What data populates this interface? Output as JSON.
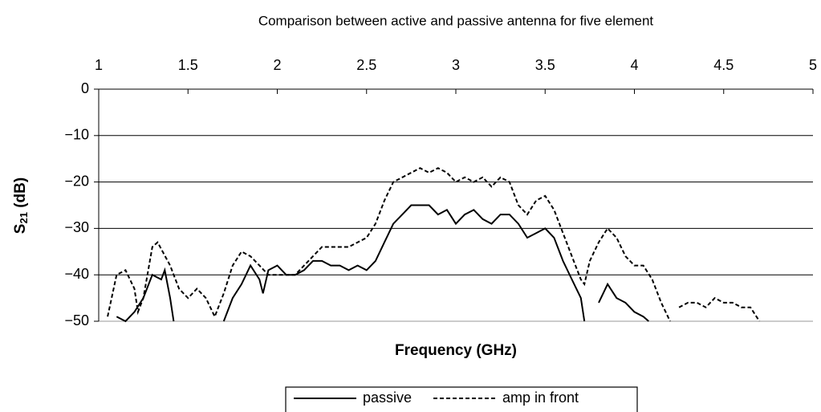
{
  "chart_data": {
    "type": "line",
    "title": "Comparison between active and passive antenna for five element",
    "x_label": "Frequency (GHz)",
    "y_label_parts": [
      "S",
      "21",
      " (dB)"
    ],
    "xlim": [
      1,
      5
    ],
    "xticks": [
      1,
      1.5,
      2,
      2.5,
      3,
      3.5,
      4,
      4.5,
      5
    ],
    "ylim": [
      -50,
      0
    ],
    "yticks": [
      0,
      {
        "value": -10,
        "label": "−10"
      },
      {
        "value": -20,
        "label": "−20"
      },
      {
        "value": -30,
        "label": "−30"
      },
      {
        "value": -40,
        "label": "−40"
      },
      {
        "value": -50,
        "label": "−50"
      }
    ],
    "grid": true,
    "legend": "bottom",
    "series": [
      {
        "name": "passive",
        "color": "#000000",
        "dash": "solid",
        "x": [
          1.1,
          1.15,
          1.2,
          1.25,
          1.3,
          1.35,
          1.37,
          1.4,
          1.42,
          1.5,
          1.7,
          1.75,
          1.8,
          1.85,
          1.9,
          1.92,
          1.95,
          2.0,
          2.05,
          2.1,
          2.15,
          2.2,
          2.25,
          2.3,
          2.35,
          2.4,
          2.45,
          2.5,
          2.55,
          2.6,
          2.65,
          2.7,
          2.75,
          2.8,
          2.85,
          2.9,
          2.95,
          3.0,
          3.05,
          3.1,
          3.15,
          3.2,
          3.25,
          3.3,
          3.35,
          3.4,
          3.45,
          3.5,
          3.55,
          3.6,
          3.65,
          3.7,
          3.72,
          3.76,
          3.8,
          3.85,
          3.9,
          3.95,
          4.0,
          4.05,
          4.08
        ],
        "values": [
          -49,
          -50,
          -48,
          -45,
          -40,
          -41,
          -39,
          -45,
          -50,
          null,
          -50,
          -45,
          -42,
          -38,
          -41,
          -44,
          -39,
          -38,
          -40,
          -40,
          -39,
          -37,
          -37,
          -38,
          -38,
          -39,
          -38,
          -39,
          -37,
          -33,
          -29,
          -27,
          -25,
          -25,
          -25,
          -27,
          -26,
          -29,
          -27,
          -26,
          -28,
          -29,
          -27,
          -27,
          -29,
          -32,
          -31,
          -30,
          -32,
          -37,
          -41,
          -45,
          -50,
          null,
          -46,
          -42,
          -45,
          -46,
          -48,
          -49,
          -50
        ]
      },
      {
        "name": "amp in front",
        "color": "#000000",
        "dash": "dashed",
        "x": [
          1.05,
          1.1,
          1.15,
          1.2,
          1.22,
          1.25,
          1.3,
          1.33,
          1.4,
          1.45,
          1.5,
          1.55,
          1.6,
          1.65,
          1.7,
          1.75,
          1.8,
          1.85,
          1.9,
          1.95,
          2.0,
          2.05,
          2.1,
          2.15,
          2.2,
          2.25,
          2.3,
          2.35,
          2.4,
          2.45,
          2.5,
          2.55,
          2.6,
          2.65,
          2.7,
          2.75,
          2.8,
          2.85,
          2.9,
          2.95,
          3.0,
          3.05,
          3.1,
          3.15,
          3.2,
          3.25,
          3.3,
          3.35,
          3.4,
          3.45,
          3.5,
          3.55,
          3.6,
          3.65,
          3.7,
          3.72,
          3.75,
          3.8,
          3.85,
          3.9,
          3.95,
          4.0,
          4.05,
          4.1,
          4.15,
          4.2,
          4.22,
          4.25,
          4.3,
          4.35,
          4.4,
          4.45,
          4.5,
          4.55,
          4.6,
          4.65,
          4.7
        ],
        "values": [
          -49,
          -40,
          -39,
          -43,
          -48,
          -45,
          -34,
          -33,
          -38,
          -43,
          -45,
          -43,
          -45,
          -49,
          -44,
          -38,
          -35,
          -36,
          -38,
          -40,
          -40,
          -40,
          -40,
          -38,
          -36,
          -34,
          -34,
          -34,
          -34,
          -33,
          -32,
          -29,
          -24,
          -20,
          -19,
          -18,
          -17,
          -18,
          -17,
          -18,
          -20,
          -19,
          -20,
          -19,
          -21,
          -19,
          -20,
          -25,
          -27,
          -24,
          -23,
          -26,
          -31,
          -36,
          -41,
          -42,
          -37,
          -33,
          -30,
          -32,
          -36,
          -38,
          -38,
          -41,
          -46,
          -50,
          null,
          -47,
          -46,
          -46,
          -47,
          -45,
          -46,
          -46,
          -47,
          -47,
          -50
        ]
      }
    ]
  }
}
